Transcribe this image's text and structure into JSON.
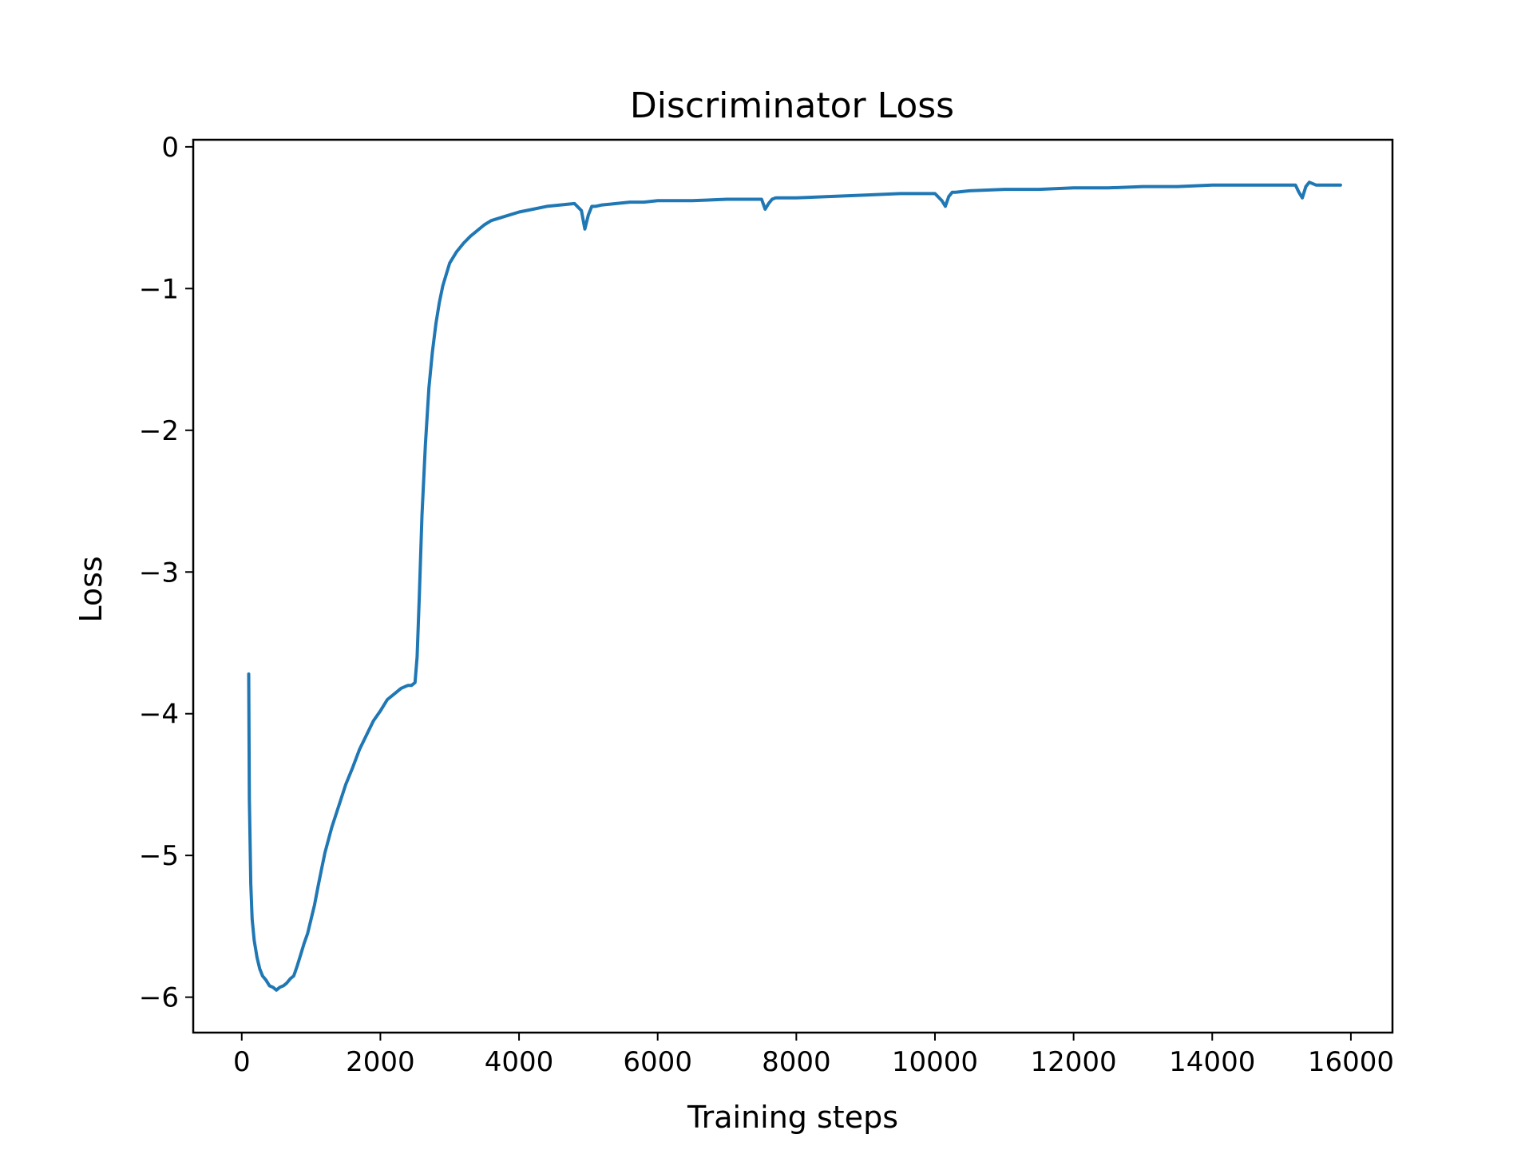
{
  "chart_data": {
    "type": "line",
    "title": "Discriminator Loss",
    "xlabel": "Training steps",
    "ylabel": "Loss",
    "xlim": [
      -700,
      16600
    ],
    "ylim": [
      -6.25,
      0.05
    ],
    "xticks": [
      0,
      2000,
      4000,
      6000,
      8000,
      10000,
      12000,
      14000,
      16000
    ],
    "xtick_labels": [
      "0",
      "2000",
      "4000",
      "6000",
      "8000",
      "10000",
      "12000",
      "14000",
      "16000"
    ],
    "yticks": [
      0,
      -1,
      -2,
      -3,
      -4,
      -5,
      -6
    ],
    "ytick_labels": [
      "0",
      "−1",
      "−2",
      "−3",
      "−4",
      "−5",
      "−6"
    ],
    "grid": false,
    "series": [
      {
        "name": "Discriminator Loss",
        "color": "#1f77b4",
        "x": [
          100,
          110,
          130,
          150,
          180,
          220,
          260,
          300,
          350,
          400,
          450,
          500,
          550,
          600,
          650,
          700,
          750,
          800,
          850,
          900,
          950,
          1000,
          1050,
          1100,
          1150,
          1200,
          1300,
          1400,
          1500,
          1600,
          1700,
          1800,
          1900,
          2000,
          2100,
          2200,
          2300,
          2400,
          2450,
          2500,
          2530,
          2560,
          2600,
          2650,
          2700,
          2750,
          2800,
          2850,
          2900,
          2950,
          3000,
          3100,
          3200,
          3300,
          3400,
          3500,
          3600,
          3800,
          4000,
          4200,
          4400,
          4600,
          4800,
          4900,
          4950,
          5000,
          5050,
          5100,
          5200,
          5400,
          5600,
          5800,
          6000,
          6500,
          7000,
          7400,
          7500,
          7550,
          7600,
          7650,
          7700,
          8000,
          8500,
          9000,
          9500,
          10000,
          10100,
          10150,
          10200,
          10250,
          10300,
          10500,
          11000,
          11500,
          12000,
          12500,
          13000,
          13500,
          14000,
          14500,
          15000,
          15200,
          15250,
          15300,
          15350,
          15400,
          15500,
          15700,
          15850
        ],
        "y": [
          -3.72,
          -4.6,
          -5.2,
          -5.45,
          -5.6,
          -5.72,
          -5.8,
          -5.85,
          -5.88,
          -5.92,
          -5.93,
          -5.95,
          -5.93,
          -5.92,
          -5.9,
          -5.87,
          -5.85,
          -5.78,
          -5.7,
          -5.62,
          -5.55,
          -5.45,
          -5.35,
          -5.22,
          -5.1,
          -4.98,
          -4.8,
          -4.65,
          -4.5,
          -4.38,
          -4.25,
          -4.15,
          -4.05,
          -3.98,
          -3.9,
          -3.86,
          -3.82,
          -3.8,
          -3.8,
          -3.78,
          -3.6,
          -3.2,
          -2.6,
          -2.1,
          -1.7,
          -1.45,
          -1.25,
          -1.1,
          -0.98,
          -0.9,
          -0.82,
          -0.74,
          -0.68,
          -0.63,
          -0.59,
          -0.55,
          -0.52,
          -0.49,
          -0.46,
          -0.44,
          -0.42,
          -0.41,
          -0.4,
          -0.45,
          -0.58,
          -0.48,
          -0.42,
          -0.42,
          -0.41,
          -0.4,
          -0.39,
          -0.39,
          -0.38,
          -0.38,
          -0.37,
          -0.37,
          -0.37,
          -0.44,
          -0.4,
          -0.37,
          -0.36,
          -0.36,
          -0.35,
          -0.34,
          -0.33,
          -0.33,
          -0.38,
          -0.42,
          -0.35,
          -0.32,
          -0.32,
          -0.31,
          -0.3,
          -0.3,
          -0.29,
          -0.29,
          -0.28,
          -0.28,
          -0.27,
          -0.27,
          -0.27,
          -0.27,
          -0.32,
          -0.36,
          -0.28,
          -0.25,
          -0.27,
          -0.27,
          -0.27
        ]
      }
    ]
  }
}
